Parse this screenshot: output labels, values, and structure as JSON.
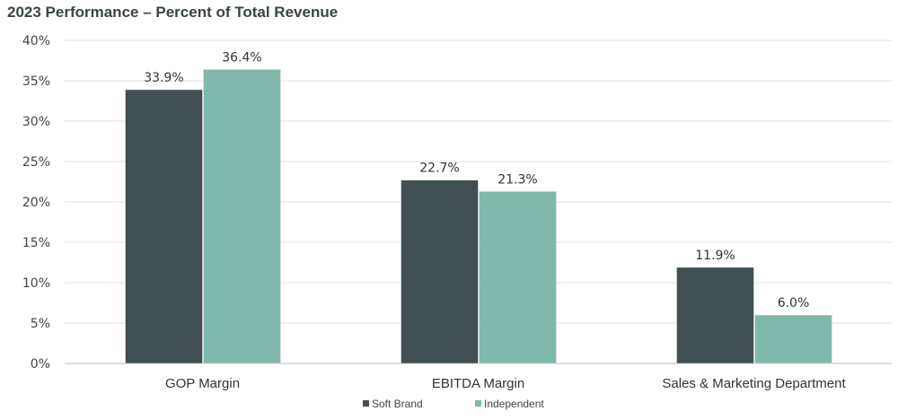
{
  "chart_data": {
    "type": "bar",
    "title": "2023 Performance – Percent of Total Revenue",
    "categories": [
      "GOP Margin",
      "EBITDA Margin",
      "Sales & Marketing Department"
    ],
    "series": [
      {
        "name": "Soft Brand",
        "values": [
          33.9,
          22.7,
          11.9
        ],
        "color": "#414f52",
        "labels": [
          "33.9%",
          "22.7%",
          "11.9%"
        ]
      },
      {
        "name": "Independent",
        "values": [
          36.4,
          21.3,
          6.0
        ],
        "color": "#80b9ab",
        "labels": [
          "36.4%",
          "21.3%",
          "6.0%"
        ]
      }
    ],
    "ylim": [
      0,
      40
    ],
    "yticks": [
      "0%",
      "5%",
      "10%",
      "15%",
      "20%",
      "25%",
      "30%",
      "35%",
      "40%"
    ],
    "grid": true,
    "legend": "bottom"
  }
}
